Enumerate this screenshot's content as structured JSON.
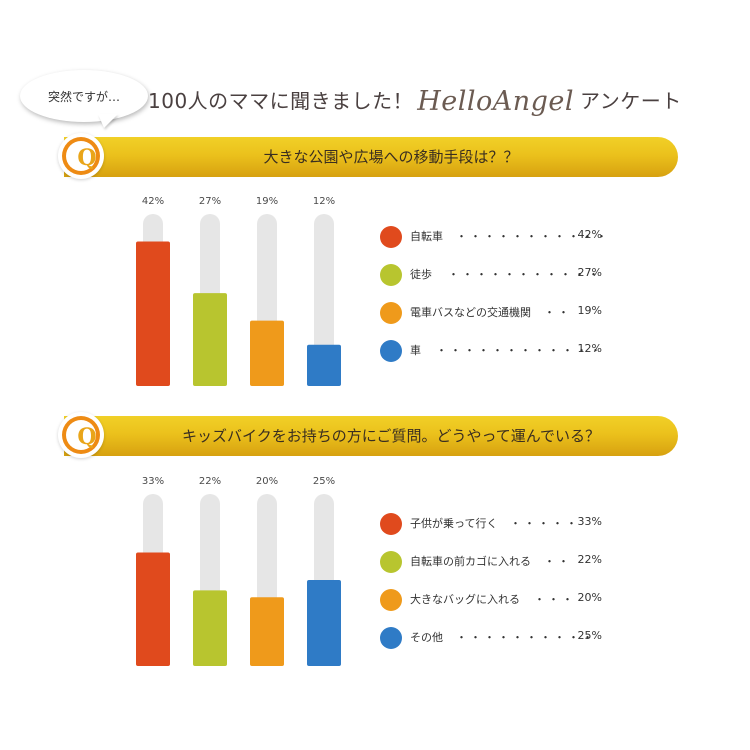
{
  "header": {
    "bubble_text": "突然ですが…",
    "title_pre": "100人のママに聞きました！",
    "brand": "HelloAngel",
    "title_post": "アンケート"
  },
  "colors": {
    "red": "#e04a1d",
    "green": "#b8c52f",
    "orange": "#ef9a1b",
    "blue": "#2f7bc6",
    "track": "#e6e6e6",
    "banner": "#ebc11c"
  },
  "questions": [
    {
      "badge": "Q",
      "text": "大きな公園や広場への移動手段は？？",
      "legend": [
        {
          "label": "自転車",
          "dots": "・・・・・・・・・・・",
          "value": "42%",
          "color": "#e04a1d"
        },
        {
          "label": "徒歩",
          "dots": "・・・・・・・・・・・",
          "value": "27%",
          "color": "#b8c52f"
        },
        {
          "label": "電車バスなどの交通機関",
          "dots": "・・",
          "value": "19%",
          "color": "#ef9a1b"
        },
        {
          "label": "車",
          "dots": "・・・・・・・・・・・・",
          "value": "12%",
          "color": "#2f7bc6"
        }
      ]
    },
    {
      "badge": "Q",
      "text": "キッズバイクをお持ちの方にご質問。どうやって運んでいる？",
      "legend": [
        {
          "label": "子供が乗って行く",
          "dots": "・・・・・",
          "value": "33%",
          "color": "#e04a1d"
        },
        {
          "label": "自転車の前カゴに入れる",
          "dots": "・・",
          "value": "22%",
          "color": "#b8c52f"
        },
        {
          "label": "大きなバッグに入れる",
          "dots": "・・・",
          "value": "20%",
          "color": "#ef9a1b"
        },
        {
          "label": "その他",
          "dots": "・・・・・・・・・・",
          "value": "25%",
          "color": "#2f7bc6"
        }
      ]
    }
  ],
  "chart_data": [
    {
      "type": "bar",
      "categories": [
        "自転車",
        "徒歩",
        "電車バスなどの交通機関",
        "車"
      ],
      "values": [
        42,
        27,
        19,
        12
      ],
      "value_labels": [
        "42%",
        "27%",
        "19%",
        "12%"
      ],
      "colors": [
        "#e04a1d",
        "#b8c52f",
        "#ef9a1b",
        "#2f7bc6"
      ],
      "ylim": [
        0,
        50
      ],
      "grid": false
    },
    {
      "type": "bar",
      "categories": [
        "子供が乗って行く",
        "自転車の前カゴに入れる",
        "大きなバッグに入れる",
        "その他"
      ],
      "values": [
        33,
        22,
        20,
        25
      ],
      "value_labels": [
        "33%",
        "22%",
        "20%",
        "25%"
      ],
      "colors": [
        "#e04a1d",
        "#b8c52f",
        "#ef9a1b",
        "#2f7bc6"
      ],
      "ylim": [
        0,
        50
      ],
      "grid": false
    }
  ]
}
